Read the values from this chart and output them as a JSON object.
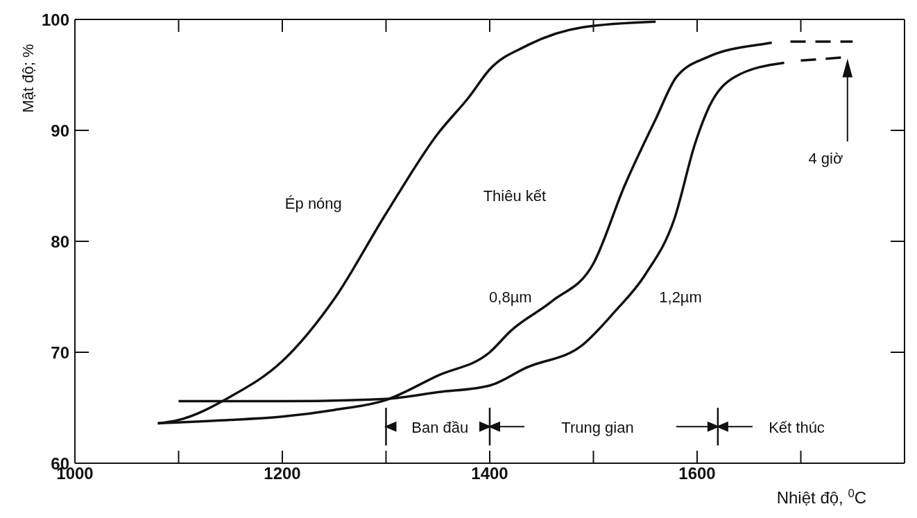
{
  "chart_data": {
    "type": "line",
    "xlabel": "Nhiệt độ, $^{0}$C",
    "ylabel": "Mật độ; %",
    "xlim": [
      1000,
      1800
    ],
    "xticks": [
      1000,
      1200,
      1400,
      1600
    ],
    "ylim": [
      60,
      100
    ],
    "yticks": [
      60,
      70,
      80,
      90,
      100
    ],
    "series": [
      {
        "type": "line",
        "color": "#111111",
        "line_style": "solid",
        "x": [
          1080,
          1100,
          1150,
          1200,
          1250,
          1300,
          1350,
          1380,
          1400,
          1435,
          1490,
          1560
        ],
        "values": [
          63.6,
          63.9,
          66.0,
          69.2,
          74.8,
          82.5,
          89.7,
          93.0,
          95.5,
          97.6,
          99.3,
          99.8
        ]
      },
      {
        "type": "line",
        "color": "#111111",
        "line_style": "solid",
        "x": [
          1080,
          1150,
          1200,
          1250,
          1300,
          1350,
          1400,
          1420,
          1460,
          1500,
          1530,
          1560,
          1580,
          1610,
          1665,
          1672
        ],
        "values": [
          63.6,
          63.9,
          64.2,
          64.8,
          65.7,
          67.9,
          70.0,
          71.9,
          74.6,
          78.0,
          85.0,
          91.0,
          94.8,
          96.6,
          97.8,
          97.9
        ]
      },
      {
        "type": "line",
        "color": "#111111",
        "line_style": "dashed",
        "x": [
          1690,
          1750
        ],
        "values": [
          98.0,
          98.0
        ]
      },
      {
        "type": "line",
        "color": "#111111",
        "line_style": "solid",
        "x": [
          1100,
          1200,
          1300,
          1350,
          1400,
          1435,
          1490,
          1520,
          1550,
          1578,
          1598,
          1612,
          1636,
          1684
        ],
        "values": [
          65.6,
          65.6,
          65.8,
          66.4,
          67.0,
          68.6,
          70.7,
          73.6,
          77.0,
          82.0,
          88.8,
          92.2,
          94.8,
          96.1
        ]
      },
      {
        "type": "line",
        "color": "#111111",
        "line_style": "dashed",
        "x": [
          1700,
          1745
        ],
        "values": [
          96.3,
          96.6
        ]
      }
    ],
    "ref_lines": [
      {
        "axis": "x",
        "value": 1300
      },
      {
        "axis": "x",
        "value": 1400
      },
      {
        "axis": "x",
        "value": 1620
      }
    ],
    "annotations": [
      "Ép nóng",
      "Thiêu kết",
      "0,8µm",
      "1,2µm",
      "4 giờ",
      "Ban đầu",
      "Trung gian",
      "Kết thúc"
    ]
  }
}
